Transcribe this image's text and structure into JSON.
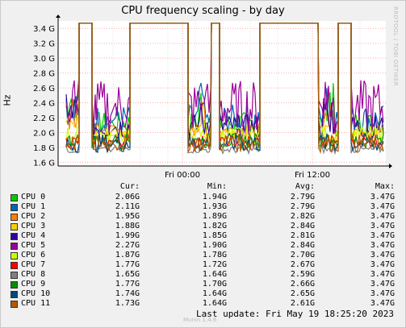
{
  "side_text": "RRDTOOL / TOBI OETIKER",
  "footer": {
    "last_update": "Last update: Fri May 19 18:25:20 2023",
    "munin": "Munin 1.4.6"
  },
  "legend_headers": {
    "cur": "Cur:",
    "min": "Min:",
    "avg": "Avg:",
    "max": "Max:"
  },
  "chart_data": {
    "type": "line",
    "title": "CPU frequency scaling - by day",
    "ylabel": "Hz",
    "y_ticks": [
      "1.6 G",
      "1.8 G",
      "2.0 G",
      "2.2 G",
      "2.4 G",
      "2.6 G",
      "2.8 G",
      "3.0 G",
      "3.2 G",
      "3.4 G"
    ],
    "x_ticks": [
      "Fri 00:00",
      "Fri 12:00"
    ],
    "ylim": [
      1.55,
      3.5
    ],
    "grid": true,
    "series": [
      {
        "name": "CPU 0",
        "color": "#00cc00",
        "cur": "2.06G",
        "min": "1.94G",
        "avg": "2.79G",
        "max": "3.47G"
      },
      {
        "name": "CPU 1",
        "color": "#0066b3",
        "cur": "2.11G",
        "min": "1.93G",
        "avg": "2.79G",
        "max": "3.47G"
      },
      {
        "name": "CPU 2",
        "color": "#ff8000",
        "cur": "1.95G",
        "min": "1.89G",
        "avg": "2.82G",
        "max": "3.47G"
      },
      {
        "name": "CPU 3",
        "color": "#ffcc00",
        "cur": "1.88G",
        "min": "1.82G",
        "avg": "2.84G",
        "max": "3.47G"
      },
      {
        "name": "CPU 4",
        "color": "#330099",
        "cur": "1.99G",
        "min": "1.85G",
        "avg": "2.81G",
        "max": "3.47G"
      },
      {
        "name": "CPU 5",
        "color": "#990099",
        "cur": "2.27G",
        "min": "1.90G",
        "avg": "2.84G",
        "max": "3.47G"
      },
      {
        "name": "CPU 6",
        "color": "#ccff00",
        "cur": "1.87G",
        "min": "1.78G",
        "avg": "2.70G",
        "max": "3.47G"
      },
      {
        "name": "CPU 7",
        "color": "#ff0000",
        "cur": "1.77G",
        "min": "1.72G",
        "avg": "2.67G",
        "max": "3.47G"
      },
      {
        "name": "CPU 8",
        "color": "#808080",
        "cur": "1.65G",
        "min": "1.64G",
        "avg": "2.59G",
        "max": "3.47G"
      },
      {
        "name": "CPU 9",
        "color": "#008f00",
        "cur": "1.77G",
        "min": "1.70G",
        "avg": "2.66G",
        "max": "3.47G"
      },
      {
        "name": "CPU 10",
        "color": "#00487d",
        "cur": "1.74G",
        "min": "1.64G",
        "avg": "2.65G",
        "max": "3.47G"
      },
      {
        "name": "CPU 11",
        "color": "#b35a00",
        "cur": "1.73G",
        "min": "1.64G",
        "avg": "2.61G",
        "max": "3.47G"
      }
    ]
  }
}
